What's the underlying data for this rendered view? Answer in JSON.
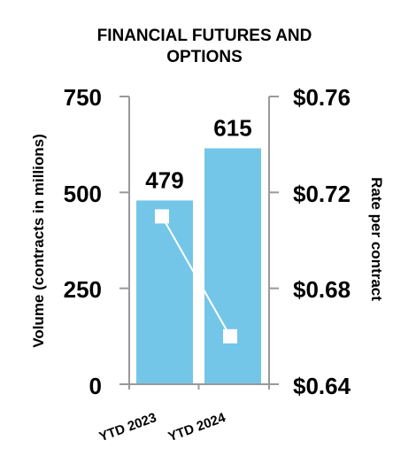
{
  "chart_data": {
    "type": "bar",
    "title_line1": "FINANCIAL FUTURES AND",
    "title_line2": "OPTIONS",
    "categories": [
      "YTD 2023",
      "YTD 2024"
    ],
    "series": [
      {
        "axis": "left",
        "type": "bar",
        "values": [
          479,
          615
        ],
        "color": "#74C6E8"
      },
      {
        "axis": "right",
        "type": "line",
        "values": [
          0.71,
          0.66
        ],
        "color": "#ffffff"
      }
    ],
    "ylabel": "Volume (contracts in millions)",
    "y2label": "Rate per contract",
    "ylim": [
      0,
      750
    ],
    "y2lim": [
      0.64,
      0.76
    ],
    "yticks": [
      "750",
      "500",
      "250",
      "0"
    ],
    "y2ticks": [
      "$0.76",
      "$0.72",
      "$0.68",
      "$0.64"
    ],
    "data_labels": [
      "479",
      "615"
    ],
    "axis_color": "#999999"
  }
}
